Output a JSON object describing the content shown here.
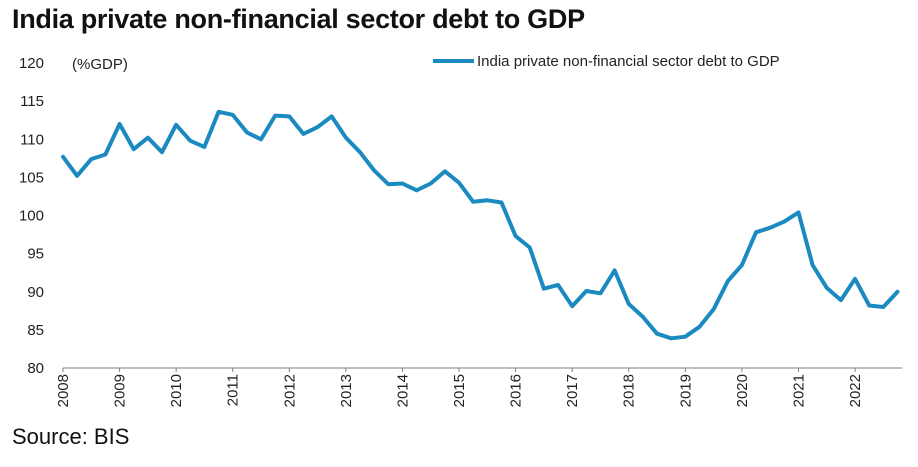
{
  "title": "India private non-financial sector debt to GDP",
  "source": "Source: BIS",
  "colors": {
    "series": "#1a8ac0",
    "axis": "#7f7f7f"
  },
  "chart_data": {
    "type": "line",
    "unit_label": "(%GDP)",
    "ylim": [
      80,
      120
    ],
    "yticks": [
      80,
      85,
      90,
      95,
      100,
      105,
      110,
      115,
      120
    ],
    "xlim": [
      2008,
      2022.83
    ],
    "xticks": [
      "2008",
      "2009",
      "2010",
      "2011",
      "2012",
      "2013",
      "2014",
      "2015",
      "2016",
      "2017",
      "2018",
      "2019",
      "2020",
      "2021",
      "2022"
    ],
    "legend": "top-right",
    "grid": false,
    "series": [
      {
        "name": "India private non-financial sector debt to GDP",
        "x": [
          "2008Q1",
          "2008Q2",
          "2008Q3",
          "2008Q4",
          "2009Q1",
          "2009Q2",
          "2009Q3",
          "2009Q4",
          "2010Q1",
          "2010Q2",
          "2010Q3",
          "2010Q4",
          "2011Q1",
          "2011Q2",
          "2011Q3",
          "2011Q4",
          "2012Q1",
          "2012Q2",
          "2012Q3",
          "2012Q4",
          "2013Q1",
          "2013Q2",
          "2013Q3",
          "2013Q4",
          "2014Q1",
          "2014Q2",
          "2014Q3",
          "2014Q4",
          "2015Q1",
          "2015Q2",
          "2015Q3",
          "2015Q4",
          "2016Q1",
          "2016Q2",
          "2016Q3",
          "2016Q4",
          "2017Q1",
          "2017Q2",
          "2017Q3",
          "2017Q4",
          "2018Q1",
          "2018Q2",
          "2018Q3",
          "2018Q4",
          "2019Q1",
          "2019Q2",
          "2019Q3",
          "2019Q4",
          "2020Q1",
          "2020Q2",
          "2020Q3",
          "2020Q4",
          "2021Q1",
          "2021Q2",
          "2021Q3",
          "2021Q4",
          "2022Q1",
          "2022Q2",
          "2022Q3",
          "2022Q4"
        ],
        "values": [
          107.7,
          105.2,
          107.4,
          108.0,
          112.0,
          108.7,
          110.2,
          108.3,
          111.9,
          109.8,
          109.0,
          113.6,
          113.2,
          110.9,
          110.0,
          113.1,
          113.0,
          110.7,
          111.6,
          113.0,
          110.2,
          108.3,
          105.9,
          104.1,
          104.2,
          103.3,
          104.2,
          105.8,
          104.3,
          101.8,
          102.0,
          101.7,
          97.3,
          95.8,
          90.4,
          90.9,
          88.1,
          90.1,
          89.8,
          92.8,
          88.4,
          86.7,
          84.5,
          83.9,
          84.1,
          85.4,
          87.7,
          91.4,
          93.5,
          97.8,
          98.4,
          99.2,
          100.4,
          93.5,
          90.5,
          88.9,
          91.7,
          88.2,
          88.0,
          90.0
        ]
      }
    ]
  }
}
